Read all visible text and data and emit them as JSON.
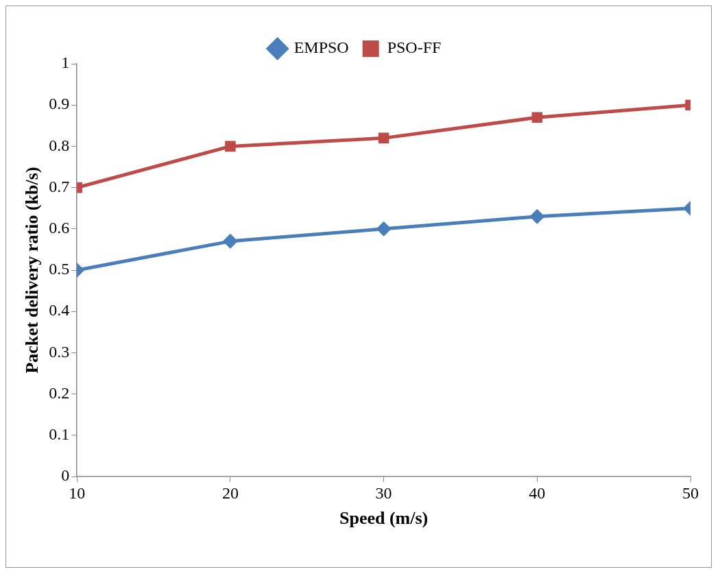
{
  "chart_data": {
    "type": "line",
    "xlabel": "Speed (m/s)",
    "ylabel": "Packet delivery ratio (kb/s)",
    "x": [
      10,
      20,
      30,
      40,
      50
    ],
    "series": [
      {
        "name": "EMPSO",
        "color": "#4a7ebb",
        "marker": "diamond",
        "values": [
          0.5,
          0.57,
          0.6,
          0.63,
          0.65
        ]
      },
      {
        "name": "PSO-FF",
        "color": "#be4b48",
        "marker": "square",
        "values": [
          0.7,
          0.8,
          0.82,
          0.87,
          0.9
        ]
      }
    ],
    "xlim": [
      10,
      50
    ],
    "xticks": [
      10,
      20,
      30,
      40,
      50
    ],
    "ylim": [
      0,
      1
    ],
    "yticks": [
      0,
      0.1,
      0.2,
      0.3,
      0.4,
      0.5,
      0.6,
      0.7,
      0.8,
      0.9,
      1
    ],
    "grid": false,
    "legend": "top"
  }
}
